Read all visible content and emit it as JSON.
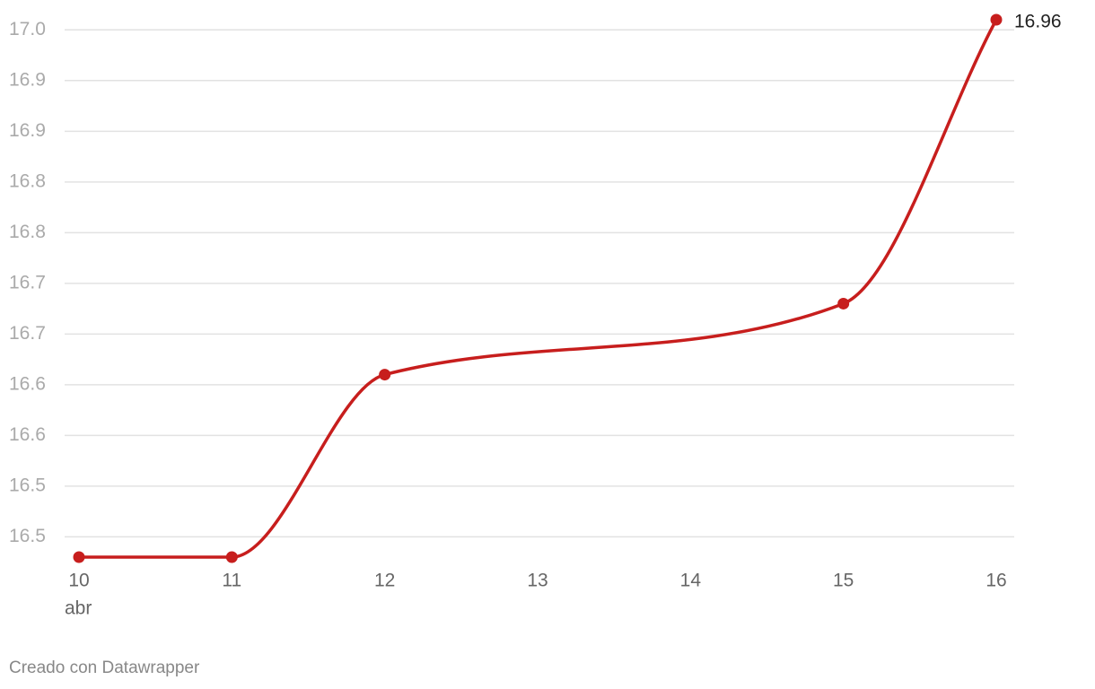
{
  "chart_data": {
    "type": "line",
    "x": [
      10,
      11,
      12,
      15,
      16
    ],
    "xlim": [
      10,
      16
    ],
    "xticks": [
      10,
      11,
      12,
      13,
      14,
      15,
      16
    ],
    "xlabel": "abr",
    "series": [
      {
        "color": "#c71e1d",
        "values": [
          16.43,
          16.43,
          16.61,
          16.68,
          16.96
        ]
      }
    ],
    "ylim": [
      16.43,
      16.96
    ],
    "yticks": [
      {
        "value": 16.95,
        "label": "17.0"
      },
      {
        "value": 16.9,
        "label": "16.9"
      },
      {
        "value": 16.85,
        "label": "16.9"
      },
      {
        "value": 16.8,
        "label": "16.8"
      },
      {
        "value": 16.75,
        "label": "16.8"
      },
      {
        "value": 16.7,
        "label": "16.7"
      },
      {
        "value": 16.65,
        "label": "16.7"
      },
      {
        "value": 16.6,
        "label": "16.6"
      },
      {
        "value": 16.55,
        "label": "16.6"
      },
      {
        "value": 16.5,
        "label": "16.5"
      },
      {
        "value": 16.45,
        "label": "16.5"
      }
    ],
    "grid": true,
    "credit": "Creado con Datawrapper"
  }
}
